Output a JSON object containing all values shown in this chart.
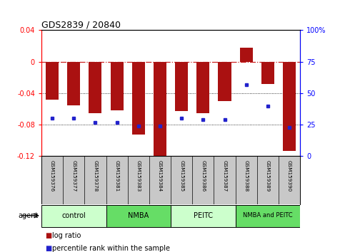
{
  "title": "GDS2839 / 20840",
  "samples": [
    "GSM159376",
    "GSM159377",
    "GSM159378",
    "GSM159381",
    "GSM159383",
    "GSM159384",
    "GSM159385",
    "GSM159386",
    "GSM159387",
    "GSM159388",
    "GSM159389",
    "GSM159390"
  ],
  "log_ratio": [
    -0.048,
    -0.055,
    -0.065,
    -0.062,
    -0.092,
    -0.125,
    -0.063,
    -0.065,
    -0.05,
    0.018,
    -0.028,
    -0.113
  ],
  "percentile_rank": [
    30,
    30,
    27,
    27,
    24,
    24,
    30,
    29,
    29,
    57,
    40,
    23
  ],
  "ylim": [
    -0.12,
    0.04
  ],
  "yticks_left": [
    -0.12,
    -0.08,
    -0.04,
    0.0,
    0.04
  ],
  "yticks_right": [
    0,
    25,
    50,
    75,
    100
  ],
  "bar_color": "#AA1111",
  "dot_color": "#2222CC",
  "hline_color": "#CC2222",
  "bg_plot": "#FFFFFF",
  "bg_sample_label": "#C8C8C8",
  "agent_groups": [
    {
      "label": "control",
      "start": 0,
      "end": 3,
      "color": "#CCFFCC"
    },
    {
      "label": "NMBA",
      "start": 3,
      "end": 6,
      "color": "#66DD66"
    },
    {
      "label": "PEITC",
      "start": 6,
      "end": 9,
      "color": "#CCFFCC"
    },
    {
      "label": "NMBA and PEITC",
      "start": 9,
      "end": 12,
      "color": "#66DD66"
    }
  ],
  "legend_red": "log ratio",
  "legend_blue": "percentile rank within the sample",
  "xlabel_agent": "agent"
}
